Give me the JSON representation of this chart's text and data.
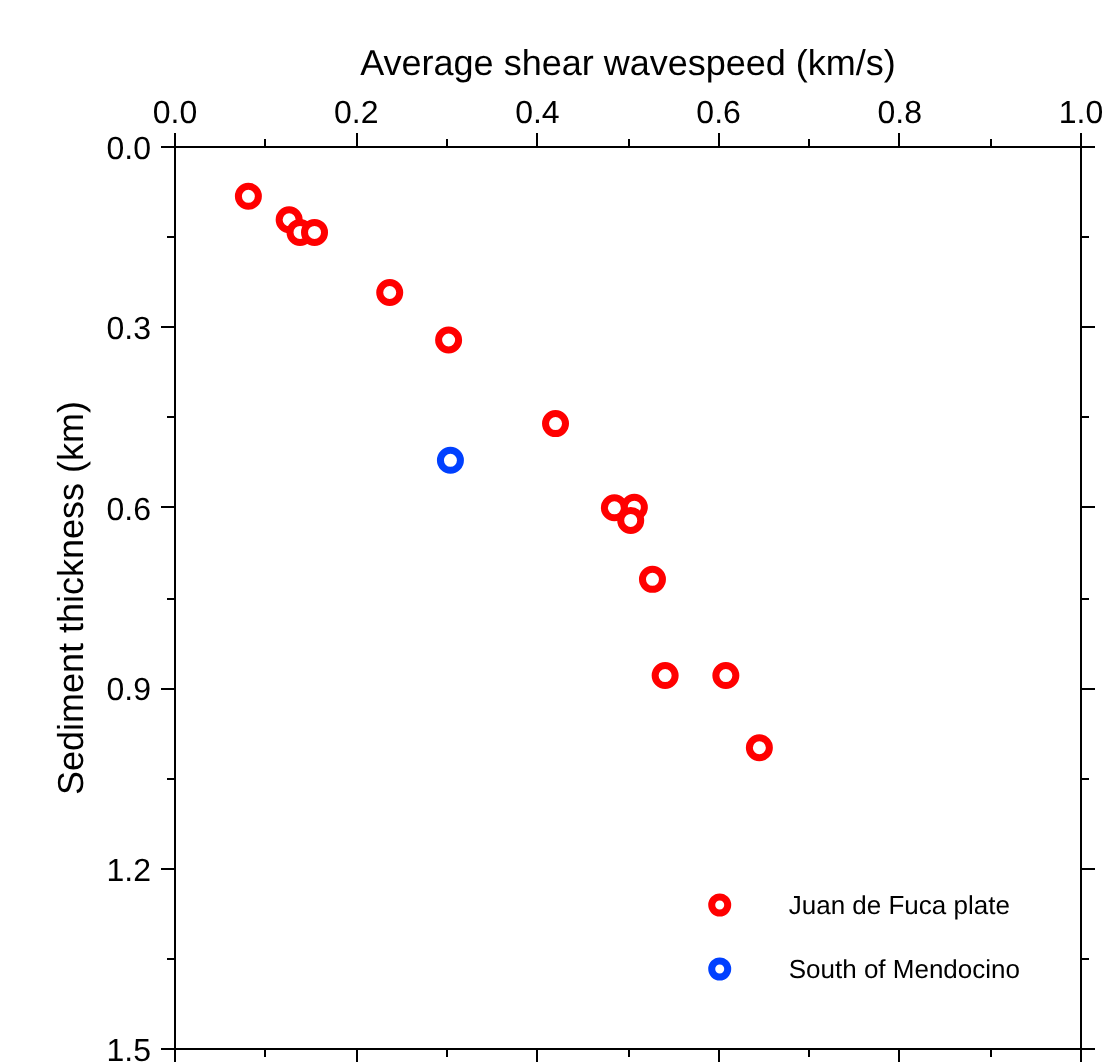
{
  "chart_data": {
    "type": "scatter",
    "xlabel": "Average shear wavespeed (km/s)",
    "ylabel": "Sediment thickness (km)",
    "xlim": [
      0.0,
      1.0
    ],
    "xticks": [
      {
        "value": 0,
        "label": "0.0"
      },
      {
        "value": 0.2,
        "label": "0.2"
      },
      {
        "value": 0.4,
        "label": "0.4"
      },
      {
        "value": 0.6,
        "label": "0.6"
      },
      {
        "value": 0.8,
        "label": "0.8"
      },
      {
        "value": 1,
        "label": "1.0"
      }
    ],
    "ylim": [
      1.5,
      0.0
    ],
    "yticks": [
      {
        "value": 0,
        "label": "0.0"
      },
      {
        "value": 0.3,
        "label": "0.3"
      },
      {
        "value": 0.6,
        "label": "0.6"
      },
      {
        "value": 0.9,
        "label": "0.9"
      },
      {
        "value": 1.2,
        "label": "1.2"
      },
      {
        "value": 1.5,
        "label": "1.5"
      }
    ],
    "grid": false,
    "legend": "bottom right",
    "marker": "circle",
    "series": [
      {
        "name": "Juan de Fuca plate",
        "color": "#ff0000",
        "x": [
          0.081,
          0.126,
          0.138,
          0.154,
          0.237,
          0.302,
          0.42,
          0.485,
          0.507,
          0.503,
          0.527,
          0.541,
          0.608,
          0.645
        ],
        "values": [
          0.082,
          0.121,
          0.142,
          0.142,
          0.242,
          0.321,
          0.46,
          0.6,
          0.599,
          0.621,
          0.719,
          0.879,
          0.879,
          0.999
        ]
      },
      {
        "name": "South of Mendocino",
        "color": "#0040ff",
        "x": [
          0.304
        ],
        "values": [
          0.521
        ]
      }
    ]
  }
}
